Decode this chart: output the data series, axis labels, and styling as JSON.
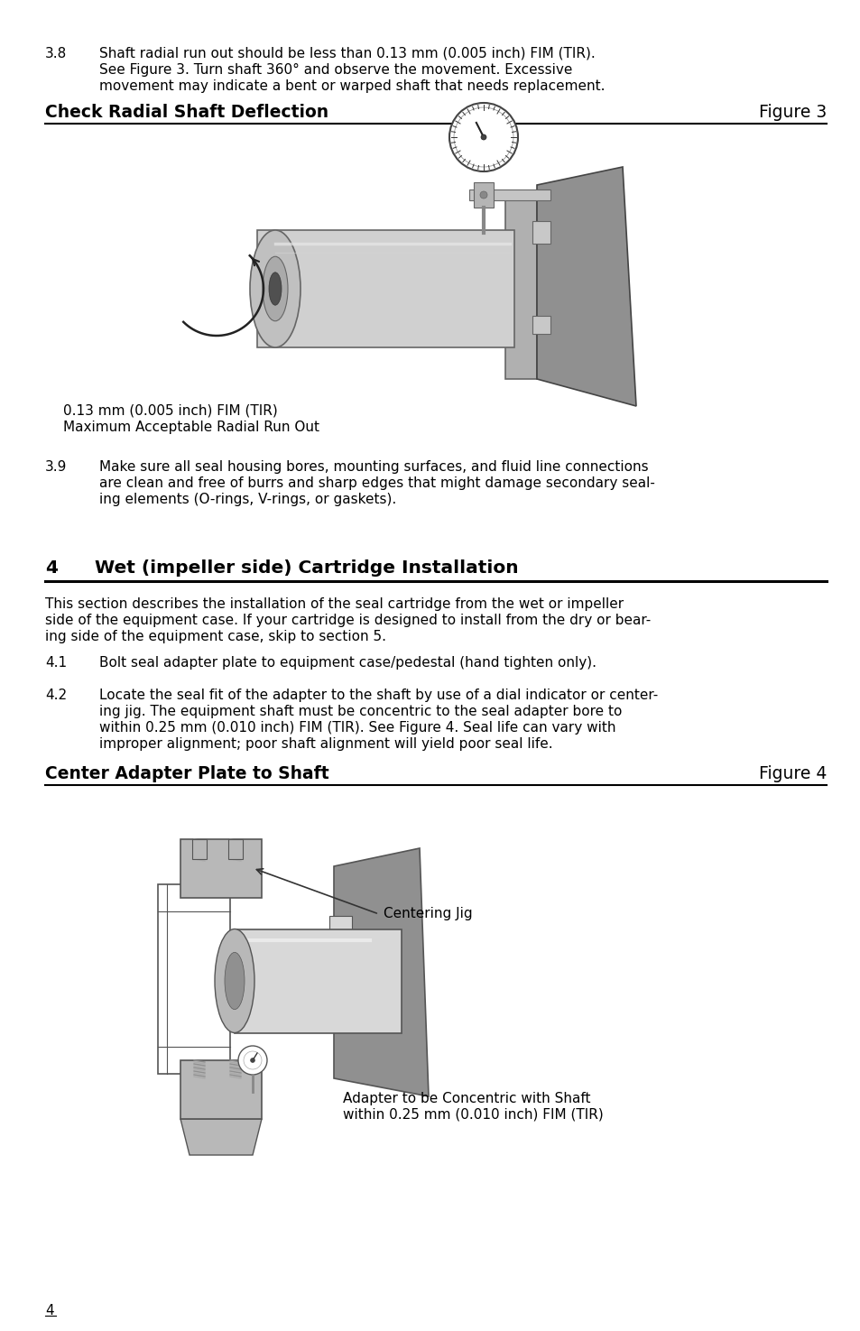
{
  "bg_color": "#ffffff",
  "text_color": "#000000",
  "section_38_number": "3.8",
  "section_38_text_line1": "Shaft radial run out should be less than 0.13 mm (0.005 inch) FIM (TIR).",
  "section_38_text_line2": "See Figure 3. Turn shaft 360° and observe the movement. Excessive",
  "section_38_text_line3": "movement may indicate a bent or warped shaft that needs replacement.",
  "header1_left": "Check Radial Shaft Deflection",
  "header1_right": "Figure 3",
  "fig3_caption_line1": "0.13 mm (0.005 inch) FIM (TIR)",
  "fig3_caption_line2": "Maximum Acceptable Radial Run Out",
  "section_39_number": "3.9",
  "section_39_text_line1": "Make sure all seal housing bores, mounting surfaces, and fluid line connections",
  "section_39_text_line2": "are clean and free of burrs and sharp edges that might damage secondary seal-",
  "section_39_text_line3": "ing elements (O-rings, V-rings, or gaskets).",
  "section4_number": "4",
  "section4_title": "Wet (impeller side) Cartridge Installation",
  "section4_intro_line1": "This section describes the installation of the seal cartridge from the wet or impeller",
  "section4_intro_line2": "side of the equipment case. If your cartridge is designed to install from the dry or bear-",
  "section4_intro_line3": "ing side of the equipment case, skip to section 5.",
  "section_41_number": "4.1",
  "section_41_text": "Bolt seal adapter plate to equipment case/pedestal (hand tighten only).",
  "section_42_number": "4.2",
  "section_42_text_line1": "Locate the seal fit of the adapter to the shaft by use of a dial indicator or center-",
  "section_42_text_line2": "ing jig. The equipment shaft must be concentric to the seal adapter bore to",
  "section_42_text_line3": "within 0.25 mm (0.010 inch) FIM (TIR). See Figure 4. Seal life can vary with",
  "section_42_text_line4": "improper alignment; poor shaft alignment will yield poor seal life.",
  "header2_left": "Center Adapter Plate to Shaft",
  "header2_right": "Figure 4",
  "fig4_label1": "Centering Jig",
  "fig4_label2_line1": "Adapter to be Concentric with Shaft",
  "fig4_label2_line2": "within 0.25 mm (0.010 inch) FIM (TIR)",
  "page_number": "4",
  "body_fontsize": 11.0,
  "header_fontsize": 13.5,
  "section_header_fontsize": 14.5
}
